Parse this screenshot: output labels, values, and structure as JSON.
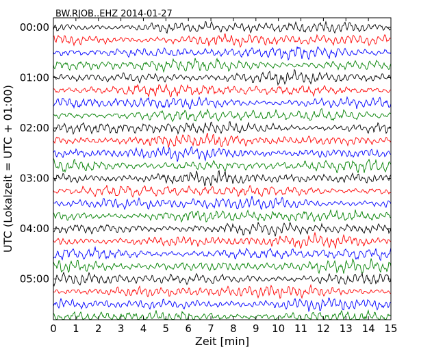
{
  "chart_data": {
    "type": "line",
    "title": "BW.RJOB..EHZ 2014-01-27",
    "xlabel": "Zeit  [min]",
    "ylabel": "UTC (Lokalzeit = UTC + 01:00)",
    "xlim": [
      0,
      15
    ],
    "x_ticks": [
      "0",
      "1",
      "2",
      "3",
      "4",
      "5",
      "6",
      "7",
      "8",
      "9",
      "10",
      "11",
      "12",
      "13",
      "14",
      "15"
    ],
    "y_ticks": [
      "00:00",
      "01:00",
      "02:00",
      "03:00",
      "04:00",
      "05:00"
    ],
    "traces_per_hour": 4,
    "trace_count": 24,
    "trace_minutes": 15,
    "series_colors": [
      "#000000",
      "#ff0000",
      "#0000ff",
      "#008000"
    ],
    "grid": false
  }
}
